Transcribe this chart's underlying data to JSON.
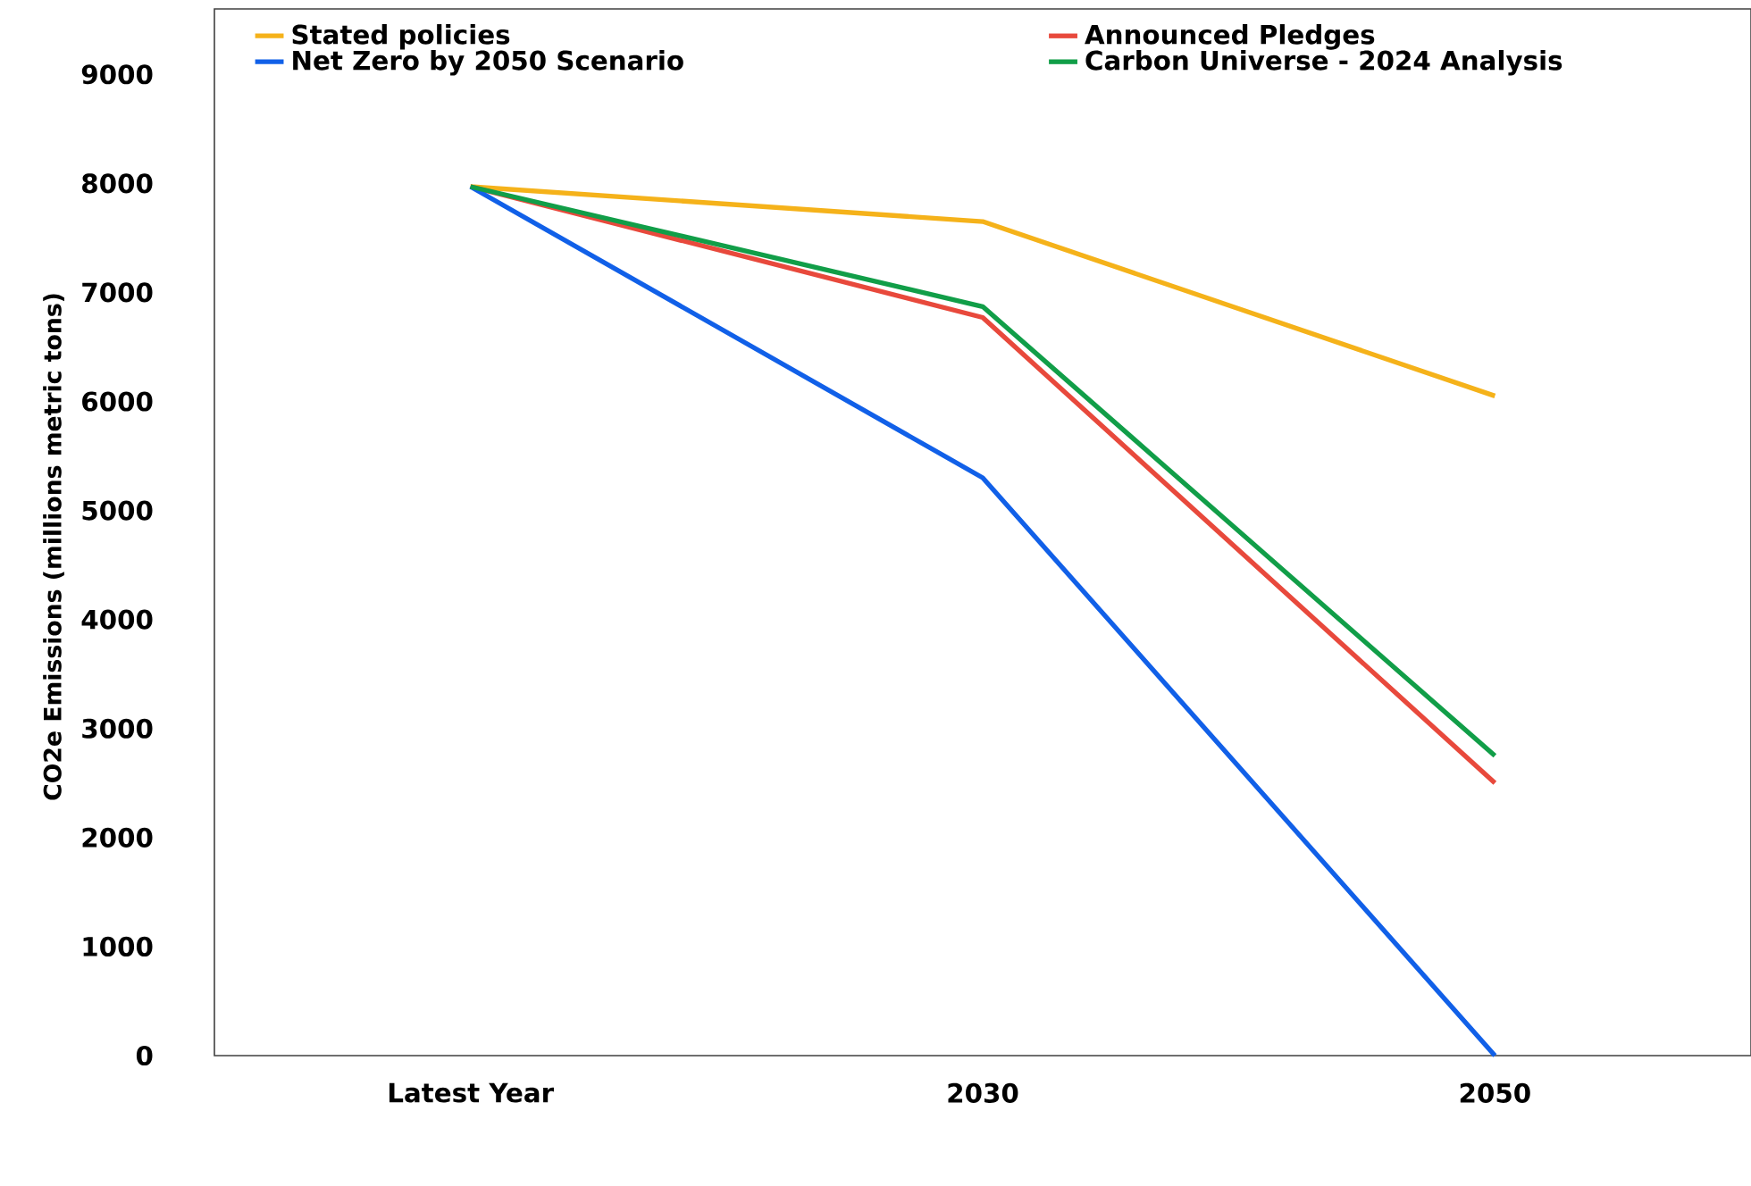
{
  "chart_data": {
    "type": "line",
    "ylabel": "CO2e Emissions (millions metric tons)",
    "categories": [
      "Latest Year",
      "2030",
      "2050"
    ],
    "series": [
      {
        "name": "Stated policies",
        "color": "#f5b21a",
        "values": [
          7970,
          7650,
          6050
        ]
      },
      {
        "name": "Announced Pledges",
        "color": "#e8493c",
        "values": [
          7970,
          6770,
          2500
        ]
      },
      {
        "name": "Net Zero by 2050 Scenario",
        "color": "#1160e8",
        "values": [
          7970,
          5300,
          0
        ]
      },
      {
        "name": "Carbon Universe - 2024 Analysis",
        "color": "#119e48",
        "values": [
          7970,
          6870,
          2750
        ]
      }
    ],
    "ylim": [
      0,
      9600
    ],
    "yticks": [
      0,
      1000,
      2000,
      3000,
      4000,
      5000,
      6000,
      7000,
      8000,
      9000
    ],
    "legend": "top",
    "grid": false,
    "marker": "none",
    "line_style": "solid"
  }
}
